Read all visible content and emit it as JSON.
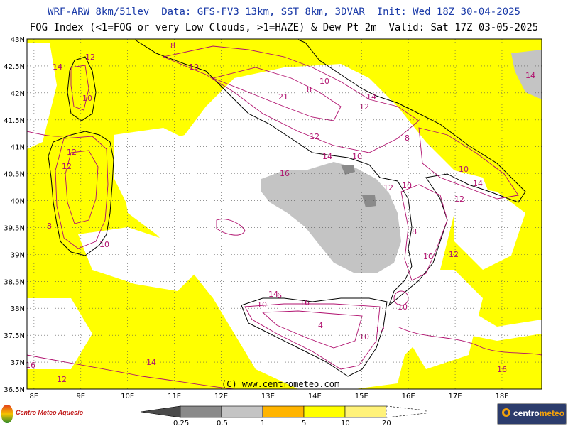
{
  "header": {
    "line1": "WRF-ARW 8km/51lev  Data: GFS-FV3 13km, SST 8km, 3DVAR  Init: Wed 18Z 30-04-2025",
    "line2": "FOG Index (<1=FOG or very Low Clouds, >1=HAZE) & Dew Pt 2m  Valid: Sat 17Z 03-05-2025"
  },
  "map": {
    "lat_labels": [
      "43N",
      "42.5N",
      "42N",
      "41.5N",
      "41N",
      "40.5N",
      "40N",
      "39.5N",
      "39N",
      "38.5N",
      "38N",
      "37.5N",
      "37N",
      "36.5N"
    ],
    "lon_labels": [
      "8E",
      "9E",
      "10E",
      "11E",
      "12E",
      "13E",
      "14E",
      "15E",
      "16E",
      "17E",
      "18E"
    ],
    "copyright": "(C) www.centrometeo.com",
    "dew_point_labels": {
      "l14a": "14",
      "l12a": "12",
      "l10a": "10",
      "l8a": "8",
      "l10b": "10",
      "l12b": "12",
      "l10c": "10",
      "l8b": "8",
      "l14b": "14",
      "l12c": "12",
      "l21": "21",
      "l12d": "12",
      "l14c": "14",
      "l10d": "10",
      "l8c": "8",
      "l12e": "12",
      "l12f": "12",
      "l16a": "16",
      "l14d": "14",
      "l10e": "10",
      "l12g": "12",
      "l10f": "10",
      "l10g": "10",
      "l14e": "14",
      "l8d": "8",
      "l10h": "10",
      "l10i": "10",
      "l12h": "12",
      "l14f": "14",
      "l8e": "8",
      "l6": "6",
      "l10j": "10",
      "l16b": "16",
      "l4": "4",
      "l12i": "12",
      "l10k": "10",
      "l16c": "16",
      "l14g": "14",
      "l12j": "12",
      "l16d": "16"
    },
    "colors": {
      "fog_gray": "#c4c4c4",
      "dark_gray": "#8a8a8a",
      "haze_yellow": "#ffff00",
      "yellow_light": "#fff27a",
      "orange": "#ffb400",
      "contour": "#b0106e",
      "boundary": "#888888"
    }
  },
  "legend": {
    "labels": [
      "0.25",
      "0.5",
      "1",
      "5",
      "10",
      "20"
    ]
  },
  "logos": {
    "left_text": "Centro Meteo Aquesio",
    "right_prefix": "centro",
    "right_suffix": "meteo"
  }
}
